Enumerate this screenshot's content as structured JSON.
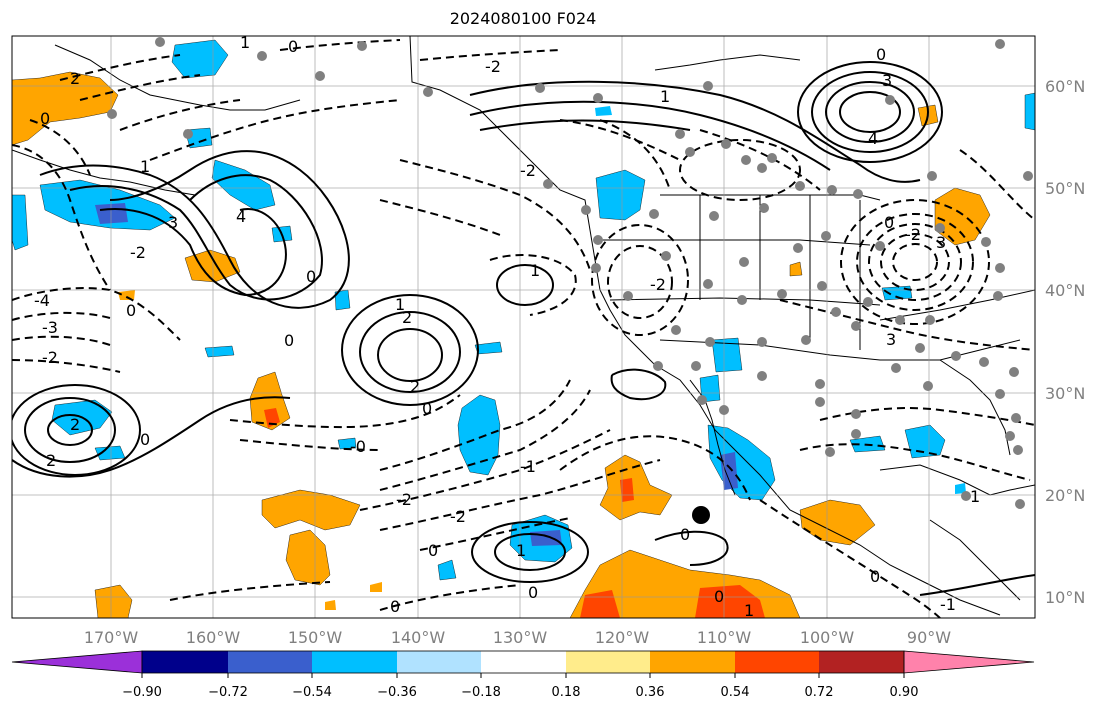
{
  "title": "2024080100 F024",
  "map": {
    "lon_labels": [
      "170°W",
      "160°W",
      "150°W",
      "140°W",
      "130°W",
      "120°W",
      "110°W",
      "100°W",
      "90°W"
    ],
    "lat_labels": [
      "60°N",
      "50°N",
      "40°N",
      "30°N",
      "20°N",
      "10°N"
    ],
    "contour_labels": [
      "2",
      "1",
      "0",
      "-2",
      "-4",
      "-3",
      "-2",
      "2",
      "3",
      "4",
      "2",
      "1",
      "-2",
      "0",
      "-2",
      "-1",
      "2",
      "1",
      "0",
      "3",
      "4",
      "-2",
      "-1",
      "0",
      "-1",
      "0",
      "0",
      "1",
      "-0",
      "-0"
    ],
    "colors": {
      "very_neg": "#9b30d9",
      "navy": "#00008b",
      "blue": "#3a5fcd",
      "sky": "#00bfff",
      "light_sky": "#b0e2ff",
      "white": "#ffffff",
      "yellow": "#ffec8b",
      "orange": "#ffa500",
      "red_orange": "#ff4500",
      "firebrick": "#b22222",
      "pink": "#ff82ab"
    }
  },
  "colorbar": {
    "tick_labels": [
      "−0.90",
      "−0.72",
      "−0.54",
      "−0.36",
      "−0.18",
      "0.18",
      "0.36",
      "0.54",
      "0.72",
      "0.90"
    ],
    "colors": [
      "#9b30d9",
      "#00008b",
      "#3a5fcd",
      "#00bfff",
      "#b0e2ff",
      "#ffffff",
      "#ffec8b",
      "#ffa500",
      "#ff4500",
      "#b22222",
      "#ff82ab"
    ]
  }
}
